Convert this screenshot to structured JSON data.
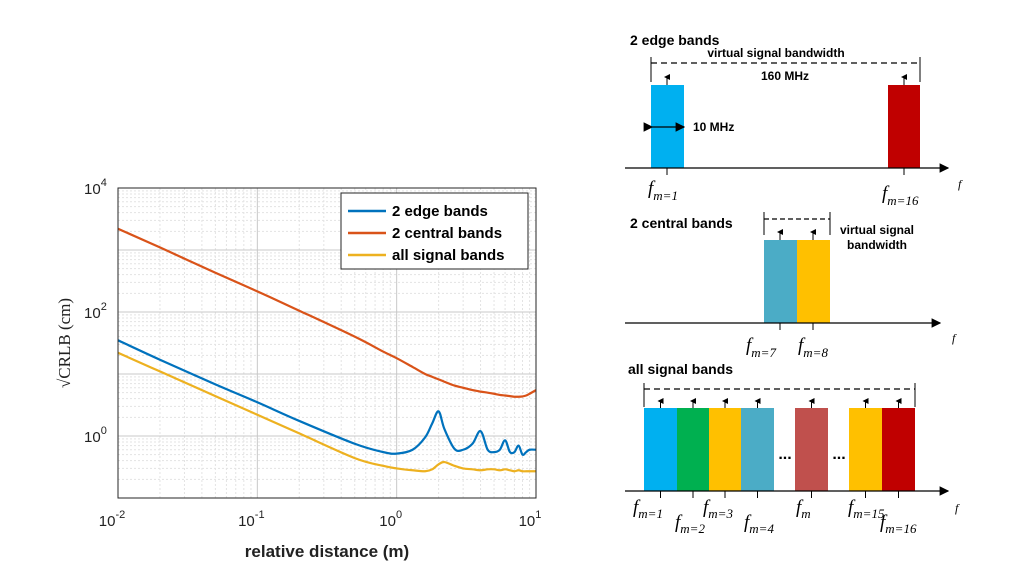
{
  "chart_data": {
    "type": "line",
    "title": "",
    "xlabel": "relative distance (m)",
    "ylabel": "√CRLB (cm)",
    "xscale": "log",
    "yscale": "log",
    "xlim": [
      0.01,
      10
    ],
    "ylim": [
      0.1,
      10000
    ],
    "grid": true,
    "legend_position": "top-right",
    "x_ticks": [
      {
        "base": "10",
        "exp": "-2"
      },
      {
        "base": "10",
        "exp": "-1"
      },
      {
        "base": "10",
        "exp": "0"
      },
      {
        "base": "10",
        "exp": "1"
      }
    ],
    "y_ticks": [
      {
        "base": "10",
        "exp": "0",
        "value": 1
      },
      {
        "base": "10",
        "exp": "2",
        "value": 100
      },
      {
        "base": "10",
        "exp": "4",
        "value": 10000
      }
    ],
    "x": [
      0.01,
      0.02,
      0.05,
      0.1,
      0.2,
      0.5,
      0.8,
      1.0,
      1.3,
      1.6,
      1.8,
      2.0,
      2.2,
      2.6,
      3.0,
      3.5,
      4.0,
      4.5,
      5.0,
      5.5,
      6.0,
      6.5,
      7.0,
      7.5,
      8.0,
      8.5,
      9.0,
      10.0
    ],
    "series": [
      {
        "name": "2 edge bands",
        "color": "#0072BD",
        "values": [
          35,
          17,
          6.8,
          3.5,
          1.75,
          0.75,
          0.55,
          0.52,
          0.6,
          0.95,
          1.6,
          2.5,
          1.3,
          0.62,
          0.6,
          0.75,
          1.2,
          0.6,
          0.55,
          0.6,
          0.85,
          0.55,
          0.55,
          0.7,
          0.5,
          0.55,
          0.6,
          0.6
        ]
      },
      {
        "name": "2 central bands",
        "color": "#D95319",
        "values": [
          2200,
          1100,
          430,
          215,
          105,
          40,
          23,
          18,
          13,
          10,
          9,
          8.2,
          7.5,
          6.5,
          6.0,
          5.5,
          5.2,
          5.0,
          4.8,
          4.6,
          4.5,
          4.4,
          4.3,
          4.3,
          4.35,
          4.5,
          4.8,
          5.5
        ]
      },
      {
        "name": "all signal bands",
        "color": "#EDB120",
        "values": [
          22,
          11,
          4.4,
          2.2,
          1.1,
          0.44,
          0.33,
          0.3,
          0.28,
          0.27,
          0.29,
          0.35,
          0.38,
          0.33,
          0.3,
          0.29,
          0.28,
          0.29,
          0.29,
          0.28,
          0.29,
          0.28,
          0.27,
          0.28,
          0.27,
          0.27,
          0.27,
          0.27
        ]
      }
    ]
  },
  "diagram": {
    "edge": {
      "title": "2 edge bands",
      "bandwidth_label": "virtual signal bandwidth",
      "span_label": "160 MHz",
      "band_width_label": "10 MHz",
      "f_left_sub": "m=1",
      "f_right_sub": "m=16",
      "band_colors": [
        "#00B0F0",
        "#C00000"
      ]
    },
    "central": {
      "title": "2 central bands",
      "bandwidth_label_line1": "virtual signal",
      "bandwidth_label_line2": "bandwidth",
      "f_left_sub": "m=7",
      "f_right_sub": "m=8",
      "band_colors": [
        "#4BACC6",
        "#FFC000"
      ]
    },
    "all": {
      "title": "all signal bands",
      "band_colors": [
        "#00B0F0",
        "#00B050",
        "#FFC000",
        "#4BACC6",
        "#C0504D",
        "#FFC000",
        "#C00000"
      ],
      "ellipsis": "...",
      "f_labels": [
        {
          "sym": "f",
          "sub": "m=1"
        },
        {
          "sym": "f",
          "sub": "m=2"
        },
        {
          "sym": "f",
          "sub": "m=3"
        },
        {
          "sym": "f",
          "sub": "m=4"
        },
        {
          "sym": "f",
          "sub": "m"
        },
        {
          "sym": "f",
          "sub": "m=15"
        },
        {
          "sym": "f",
          "sub": "m=16"
        }
      ]
    },
    "f_symbol": "f",
    "axis_symbol": "f"
  }
}
